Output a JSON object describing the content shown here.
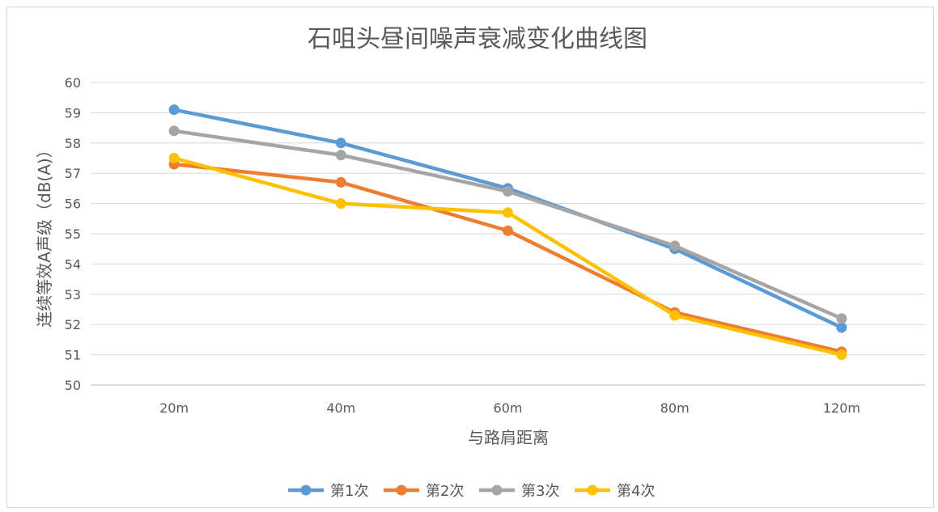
{
  "chart_data": {
    "type": "line",
    "title": "石咀头昼间噪声衰减变化曲线图",
    "xlabel": "与路肩距离",
    "ylabel": "连续等效A声级（dB(A)）",
    "categories": [
      "20m",
      "40m",
      "60m",
      "80m",
      "120m"
    ],
    "ylim": [
      50,
      60
    ],
    "yticks": [
      50,
      51,
      52,
      53,
      54,
      55,
      56,
      57,
      58,
      59,
      60
    ],
    "grid": true,
    "legend": "bottom",
    "series": [
      {
        "name": "第1次",
        "color": "#5b9bd5",
        "values": [
          59.1,
          58.0,
          56.5,
          54.5,
          51.9
        ]
      },
      {
        "name": "第2次",
        "color": "#ed7d31",
        "values": [
          57.3,
          56.7,
          55.1,
          52.4,
          51.1
        ]
      },
      {
        "name": "第3次",
        "color": "#a5a5a5",
        "values": [
          58.4,
          57.6,
          56.4,
          54.6,
          52.2
        ]
      },
      {
        "name": "第4次",
        "color": "#ffc000",
        "values": [
          57.5,
          56.0,
          55.7,
          52.3,
          51.0
        ]
      }
    ]
  }
}
